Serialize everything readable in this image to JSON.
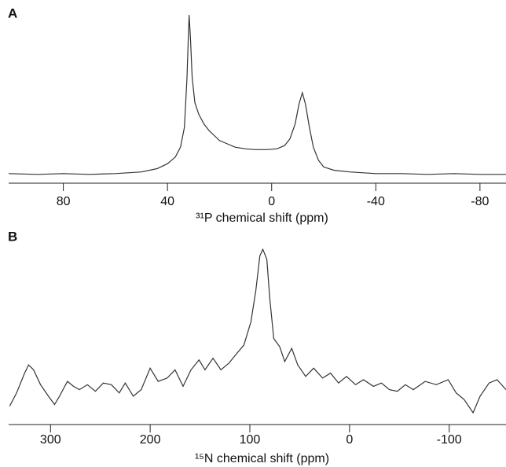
{
  "chart_data": [
    {
      "type": "line",
      "title": "A",
      "x_label": "³¹P chemical shift (ppm)",
      "xlim": [
        101,
        -90
      ],
      "xticks": [
        80,
        40,
        0,
        -40,
        -80
      ],
      "ylim": [
        0,
        100
      ],
      "color": "#333333",
      "x": [
        101,
        90,
        80,
        70,
        60,
        50,
        44,
        40,
        37,
        35,
        33.5,
        32.5,
        32,
        31.7,
        31.2,
        30.5,
        29.5,
        28,
        26,
        24,
        22,
        20,
        17,
        14,
        10,
        6,
        2,
        -2,
        -5,
        -7,
        -9,
        -10.5,
        -11.8,
        -13,
        -14.5,
        -16,
        -18,
        -20,
        -24,
        -30,
        -40,
        -50,
        -60,
        -70,
        -80,
        -90
      ],
      "values": [
        2,
        1.5,
        2,
        1.5,
        2,
        3,
        5,
        8,
        12,
        18,
        30,
        60,
        85,
        98,
        85,
        60,
        45,
        38,
        32,
        28,
        25,
        22,
        20,
        18,
        17,
        16.5,
        16.5,
        17,
        19,
        23,
        32,
        44,
        51,
        44,
        30,
        18,
        10,
        6,
        4,
        3,
        2,
        2,
        1.5,
        2,
        1.5,
        1.5
      ]
    },
    {
      "type": "line",
      "title": "B",
      "x_label": "¹⁵N chemical shift (ppm)",
      "xlim": [
        342,
        -157
      ],
      "xticks": [
        300,
        200,
        100,
        0,
        -100
      ],
      "ylim": [
        0,
        100
      ],
      "color": "#333333",
      "x": [
        341,
        334,
        326,
        322,
        317,
        310,
        302,
        296,
        291,
        283,
        277,
        271,
        263,
        255,
        247,
        239,
        231,
        225,
        217,
        209,
        200,
        192,
        183,
        175,
        167,
        159,
        151,
        145,
        137,
        129,
        121,
        113,
        106,
        99,
        94,
        90,
        87,
        83,
        80,
        76,
        70,
        65,
        58,
        52,
        44,
        36,
        27,
        19,
        11,
        3,
        -6,
        -14,
        -24,
        -32,
        -40,
        -48,
        -56,
        -64,
        -76,
        -87,
        -99,
        -107,
        -115,
        -124,
        -131,
        -140,
        -148,
        -157
      ],
      "values": [
        4,
        12,
        24,
        29,
        26,
        17,
        10,
        5,
        10,
        19,
        16,
        14,
        17,
        13,
        18,
        17,
        12,
        18,
        10,
        14,
        27,
        19,
        21,
        26,
        16,
        26,
        32,
        26,
        33,
        26,
        30,
        36,
        41,
        55,
        74,
        95,
        99,
        93,
        69,
        45,
        40,
        31,
        39,
        29,
        22,
        27,
        21,
        24,
        18,
        22,
        17,
        20,
        16,
        18,
        14,
        13,
        17,
        14,
        19,
        17,
        20,
        12,
        8,
        0,
        10,
        18,
        20,
        14
      ]
    }
  ]
}
